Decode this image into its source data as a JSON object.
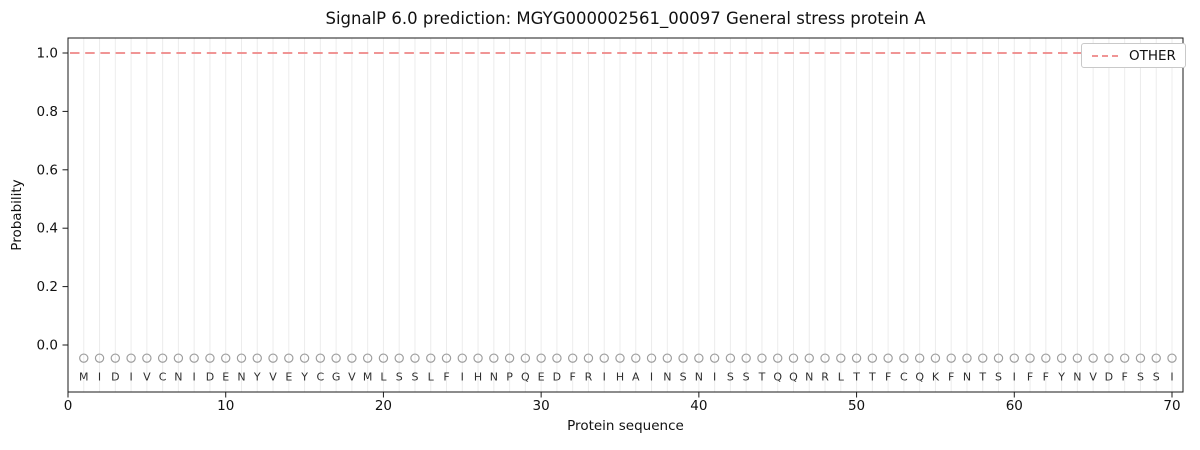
{
  "chart_data": {
    "type": "line",
    "title": "SignalP 6.0 prediction: MGYG000002561_00097 General stress protein A",
    "xlabel": "Protein sequence",
    "ylabel": "Probability",
    "xlim": [
      0,
      70.7
    ],
    "ylim": [
      -0.16,
      1.045
    ],
    "x_ticks": [
      0,
      10,
      20,
      30,
      40,
      50,
      60,
      70
    ],
    "y_ticks": [
      0,
      0.2,
      0.4,
      0.6,
      0.8,
      1
    ],
    "y_tick_labels": [
      "0.0",
      "0.2",
      "0.4",
      "0.6",
      "0.8",
      "1.0"
    ],
    "grid": "light vertical gridline at every residue position",
    "legend": {
      "position": "upper right",
      "entries": [
        {
          "label": "OTHER",
          "line_style": "dashed",
          "color": "#ee8686"
        }
      ]
    },
    "sequence": "MIDIVCNIDENYVEYCGVMLSSLFIHNPQEDFRIHAINSNISSTQQNRLTTFCQKFNTSIFFYNVDFSSI",
    "series": [
      {
        "name": "OTHER",
        "style": "dashed",
        "color": "#ee8686",
        "span": "full plot width (horizontal line at y=1.0)",
        "x": [
          1,
          2,
          3,
          4,
          5,
          6,
          7,
          8,
          9,
          10,
          11,
          12,
          13,
          14,
          15,
          16,
          17,
          18,
          19,
          20,
          21,
          22,
          23,
          24,
          25,
          26,
          27,
          28,
          29,
          30,
          31,
          32,
          33,
          34,
          35,
          36,
          37,
          38,
          39,
          40,
          41,
          42,
          43,
          44,
          45,
          46,
          47,
          48,
          49,
          50,
          51,
          52,
          53,
          54,
          55,
          56,
          57,
          58,
          59,
          60,
          61,
          62,
          63,
          64,
          65,
          66,
          67,
          68,
          69,
          70
        ],
        "values": [
          1.0,
          1.0,
          1.0,
          1.0,
          1.0,
          1.0,
          1.0,
          1.0,
          1.0,
          1.0,
          1.0,
          1.0,
          1.0,
          1.0,
          1.0,
          1.0,
          1.0,
          1.0,
          1.0,
          1.0,
          1.0,
          1.0,
          1.0,
          1.0,
          1.0,
          1.0,
          1.0,
          1.0,
          1.0,
          1.0,
          1.0,
          1.0,
          1.0,
          1.0,
          1.0,
          1.0,
          1.0,
          1.0,
          1.0,
          1.0,
          1.0,
          1.0,
          1.0,
          1.0,
          1.0,
          1.0,
          1.0,
          1.0,
          1.0,
          1.0,
          1.0,
          1.0,
          1.0,
          1.0,
          1.0,
          1.0,
          1.0,
          1.0,
          1.0,
          1.0,
          1.0,
          1.0,
          1.0,
          1.0,
          1.0,
          1.0,
          1.0,
          1.0,
          1.0,
          1.0
        ]
      }
    ],
    "residue_markers": {
      "shape": "open circle",
      "y": -0.045,
      "color": "#9e9e9e"
    }
  }
}
